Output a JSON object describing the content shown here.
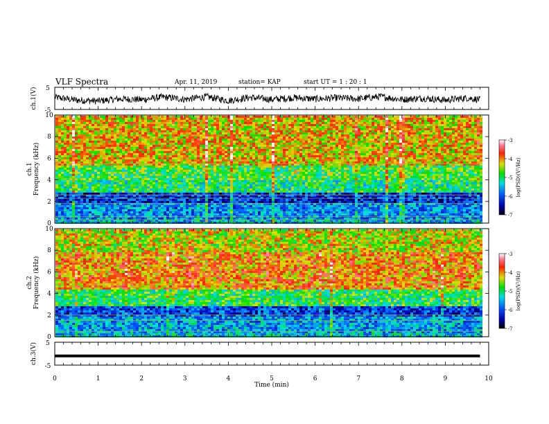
{
  "header": {
    "title": "VLF Spectra",
    "date": "Apr. 11, 2019",
    "station": "station= KAP",
    "start": "start  UT =   1 : 20 : 1"
  },
  "chart_data": [
    {
      "type": "line",
      "ylabel": "ch.1(V)",
      "ylim": [
        -5,
        5
      ],
      "yticks": [
        "5",
        "-5"
      ],
      "xlim": [
        0,
        10
      ],
      "description_series": "waveform",
      "x": [
        0,
        0.5,
        1,
        1.5,
        2,
        2.5,
        3,
        3.5,
        4,
        4.5,
        5,
        5.5,
        6,
        6.5,
        7,
        7.5,
        8,
        8.5,
        9,
        9.5,
        9.8
      ],
      "y": [
        0.5,
        -0.8,
        -1.2,
        -0.2,
        -0.6,
        0.6,
        -0.4,
        0.7,
        -1.0,
        0.4,
        -0.5,
        0.3,
        -0.3,
        0.2,
        -0.2,
        0.8,
        -0.5,
        0.1,
        -0.8,
        0.2,
        -0.6
      ]
    },
    {
      "type": "heatmap",
      "ylabel": "ch.1\nFrequency (kHz)",
      "ylim": [
        0,
        10
      ],
      "yticks": [
        "0",
        "2",
        "4",
        "6",
        "8",
        "10"
      ],
      "xlim": [
        0,
        10
      ],
      "colorbar": {
        "label": "log(PSD)(V²/Hz)",
        "range": [
          -7,
          -3
        ],
        "ticks": [
          "-3",
          "-4",
          "-5",
          "-6",
          "-7"
        ]
      },
      "bands": [
        {
          "from": 0,
          "to": 0.5,
          "level": -5.5
        },
        {
          "from": 0.5,
          "to": 2,
          "level": -5.7
        },
        {
          "from": 2,
          "to": 3,
          "level": -6.2
        },
        {
          "from": 3,
          "to": 4,
          "level": -5.0
        },
        {
          "from": 4,
          "to": 5.5,
          "level": -4.8
        },
        {
          "from": 5.5,
          "to": 10,
          "level": -4.2
        }
      ],
      "lines_khz": [
        0.3,
        0.6,
        1.8,
        2.3,
        2.6,
        5.5
      ]
    },
    {
      "type": "heatmap",
      "ylabel": "ch.2\nFrequency (kHz)",
      "ylim": [
        0,
        10
      ],
      "yticks": [
        "0",
        "2",
        "4",
        "6",
        "8",
        "10"
      ],
      "xlim": [
        0,
        10
      ],
      "colorbar": {
        "label": "log(PSD)(V²/Hz)",
        "range": [
          -7,
          -3
        ],
        "ticks": [
          "-3",
          "-4",
          "-5",
          "-6",
          "-7"
        ]
      },
      "bands": [
        {
          "from": 0,
          "to": 0.5,
          "level": -5.4
        },
        {
          "from": 0.5,
          "to": 2,
          "level": -5.6
        },
        {
          "from": 2,
          "to": 3,
          "level": -6.1
        },
        {
          "from": 3,
          "to": 4.5,
          "level": -4.9
        },
        {
          "from": 4.5,
          "to": 8,
          "level": -4.0
        },
        {
          "from": 8,
          "to": 10,
          "level": -4.4
        }
      ],
      "lines_khz": [
        0.5,
        1.5,
        2.0
      ]
    },
    {
      "type": "line",
      "ylabel": "ch.3(V)",
      "ylim": [
        -5,
        5
      ],
      "yticks": [
        "5",
        "-5"
      ],
      "xlim": [
        0,
        10
      ],
      "x": [
        0,
        9.8
      ],
      "y": [
        -1,
        -1
      ],
      "xlabel": "Time (min)",
      "xticks": [
        "0",
        "1",
        "2",
        "3",
        "4",
        "5",
        "6",
        "7",
        "8",
        "9",
        "10"
      ]
    }
  ]
}
